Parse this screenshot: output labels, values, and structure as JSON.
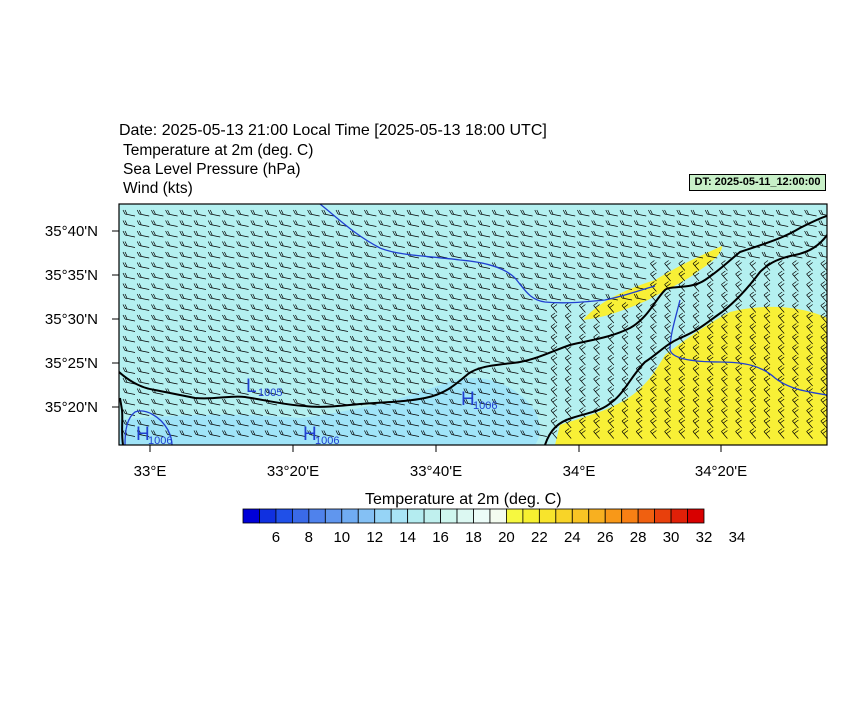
{
  "header": {
    "title": "Date: 2025-05-13  21:00 Local Time [2025-05-13  18:00 UTC]",
    "line1": "Temperature at 2m   (deg. C)",
    "line2": "Sea Level Pressure   (hPa)",
    "line3": "Wind   (kts)",
    "dt_label": "DT: 2025-05-11_12:00:00"
  },
  "map": {
    "lat_labels": [
      "35°40'N",
      "35°35'N",
      "35°30'N",
      "35°25'N",
      "35°20'N"
    ],
    "lon_labels": [
      "33°E",
      "33°20'E",
      "33°40'E",
      "34°E",
      "34°20'E"
    ],
    "pressure_centers": [
      {
        "letter": "L",
        "value": "1005"
      },
      {
        "letter": "H",
        "value": "1006"
      },
      {
        "letter": "H",
        "value": "1006"
      },
      {
        "letter": "H",
        "value": "1006"
      }
    ],
    "colors": {
      "sea_fill": "#b4f0f0",
      "warm_fill": "#f8f036",
      "cool_fill": "#a0e4f8",
      "coast": "#000000",
      "isobar": "#2040d0"
    }
  },
  "colorbar": {
    "title": "Temperature at 2m  (deg. C)",
    "labels": [
      "6",
      "8",
      "10",
      "12",
      "14",
      "16",
      "18",
      "20",
      "22",
      "24",
      "26",
      "28",
      "30",
      "32",
      "34"
    ],
    "colors": [
      "#0000d8",
      "#1030e0",
      "#2050e8",
      "#3a6ae8",
      "#4f82ec",
      "#6096ee",
      "#70acf2",
      "#84c0f4",
      "#96d4f6",
      "#a8e4f6",
      "#b4ecf0",
      "#c0f0ee",
      "#cef6ee",
      "#dcf8f2",
      "#ecfcf8",
      "#f4fcf0",
      "#f6f840",
      "#f6f030",
      "#f8e42c",
      "#f8d428",
      "#f8c424",
      "#f8b020",
      "#f89818",
      "#f88014",
      "#f06010",
      "#e8400c",
      "#e02008",
      "#d80000"
    ]
  }
}
